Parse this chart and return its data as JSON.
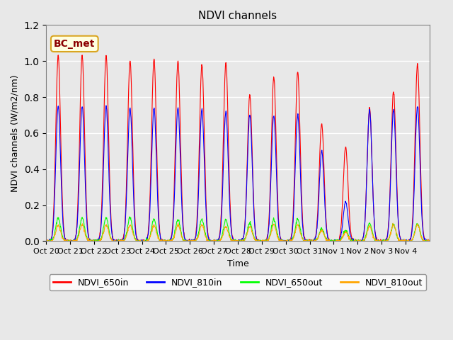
{
  "title": "NDVI channels",
  "xlabel": "Time",
  "ylabel": "NDVI channels (W/m2/nm)",
  "ylim": [
    0,
    1.2
  ],
  "annotation": "BC_met",
  "legend_labels": [
    "NDVI_650in",
    "NDVI_810in",
    "NDVI_650out",
    "NDVI_810out"
  ],
  "legend_colors": [
    "red",
    "blue",
    "lime",
    "orange"
  ],
  "line_colors": {
    "NDVI_650in": "red",
    "NDVI_810in": "blue",
    "NDVI_650out": "lime",
    "NDVI_810out": "orange"
  },
  "x_tick_labels": [
    "Oct 20",
    "Oct 21",
    "Oct 22",
    "Oct 23",
    "Oct 24",
    "Oct 25",
    "Oct 26",
    "Oct 27",
    "Oct 28",
    "Oct 29",
    "Oct 30",
    "Oct 31",
    "Nov 1",
    "Nov 2",
    "Nov 3",
    "Nov 4"
  ],
  "background_color": "#e8e8e8",
  "plot_bg_color": "#e8e8e8",
  "grid_color": "white",
  "peaks_650in": [
    1.03,
    1.03,
    1.03,
    1.0,
    1.01,
    1.0,
    0.98,
    0.99,
    0.81,
    0.91,
    0.94,
    0.65,
    0.52,
    0.74,
    0.83,
    0.98
  ],
  "peaks_810in": [
    0.75,
    0.75,
    0.75,
    0.74,
    0.74,
    0.74,
    0.73,
    0.72,
    0.7,
    0.7,
    0.7,
    0.5,
    0.22,
    0.73,
    0.73,
    0.75
  ],
  "peaks_650out": [
    0.13,
    0.13,
    0.13,
    0.13,
    0.12,
    0.12,
    0.12,
    0.12,
    0.1,
    0.12,
    0.12,
    0.07,
    0.06,
    0.1,
    0.09,
    0.1
  ],
  "peaks_810out": [
    0.09,
    0.09,
    0.09,
    0.09,
    0.09,
    0.09,
    0.09,
    0.08,
    0.08,
    0.09,
    0.09,
    0.06,
    0.05,
    0.08,
    0.09,
    0.09
  ]
}
